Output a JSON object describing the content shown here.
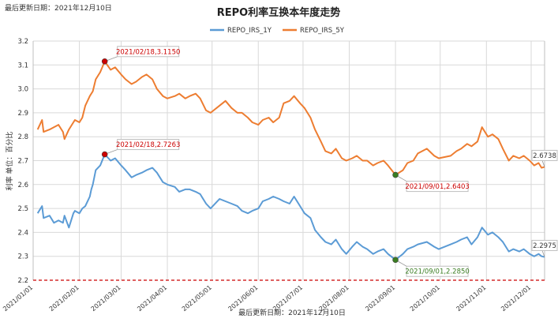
{
  "top_note": "最后更新日期：2021年12月10日",
  "footer_note": "最后更新日期：2021年12月10日",
  "chart_data": {
    "type": "line",
    "title": "REPO利率互换本年度走势",
    "ylabel": "利率 单位：百分比",
    "xlabel": "",
    "ylim": [
      2.2,
      3.2
    ],
    "yticks": [
      "2.2",
      "2.3",
      "2.4",
      "2.5",
      "2.6",
      "2.7",
      "2.8",
      "2.9",
      "3.0",
      "3.1",
      "3.2"
    ],
    "xlim": [
      "2021-01-01",
      "2021-12-10"
    ],
    "xticks": [
      "2021/01/01",
      "2021/02/01",
      "2021/03/01",
      "2021/04/01",
      "2021/05/01",
      "2021/06/01",
      "2021/07/01",
      "2021/08/01",
      "2021/09/01",
      "2021/10/01",
      "2021/11/01",
      "2021/12/01"
    ],
    "grid": true,
    "legend": "top-center",
    "reference_line": {
      "y": 2.2,
      "color": "#cc0000",
      "style": "dashed"
    },
    "series": [
      {
        "name": "REPO_IRS_1Y",
        "color": "#5b9bd5",
        "points": [
          [
            "2021-01-04",
            2.48
          ],
          [
            "2021-01-07",
            2.51
          ],
          [
            "2021-01-08",
            2.46
          ],
          [
            "2021-01-12",
            2.47
          ],
          [
            "2021-01-15",
            2.44
          ],
          [
            "2021-01-18",
            2.45
          ],
          [
            "2021-01-21",
            2.44
          ],
          [
            "2021-01-22",
            2.47
          ],
          [
            "2021-01-25",
            2.42
          ],
          [
            "2021-01-28",
            2.48
          ],
          [
            "2021-01-29",
            2.49
          ],
          [
            "2021-02-01",
            2.48
          ],
          [
            "2021-02-03",
            2.5
          ],
          [
            "2021-02-05",
            2.51
          ],
          [
            "2021-02-08",
            2.55
          ],
          [
            "2021-02-09",
            2.58
          ],
          [
            "2021-02-10",
            2.6
          ],
          [
            "2021-02-12",
            2.66
          ],
          [
            "2021-02-15",
            2.68
          ],
          [
            "2021-02-18",
            2.7263
          ],
          [
            "2021-02-22",
            2.7
          ],
          [
            "2021-02-25",
            2.71
          ],
          [
            "2021-03-01",
            2.68
          ],
          [
            "2021-03-04",
            2.66
          ],
          [
            "2021-03-08",
            2.63
          ],
          [
            "2021-03-11",
            2.64
          ],
          [
            "2021-03-15",
            2.65
          ],
          [
            "2021-03-18",
            2.66
          ],
          [
            "2021-03-22",
            2.67
          ],
          [
            "2021-03-25",
            2.65
          ],
          [
            "2021-03-29",
            2.61
          ],
          [
            "2021-04-01",
            2.6
          ],
          [
            "2021-04-06",
            2.59
          ],
          [
            "2021-04-09",
            2.57
          ],
          [
            "2021-04-13",
            2.58
          ],
          [
            "2021-04-16",
            2.58
          ],
          [
            "2021-04-20",
            2.57
          ],
          [
            "2021-04-23",
            2.56
          ],
          [
            "2021-04-27",
            2.52
          ],
          [
            "2021-04-30",
            2.5
          ],
          [
            "2021-05-06",
            2.54
          ],
          [
            "2021-05-10",
            2.53
          ],
          [
            "2021-05-14",
            2.52
          ],
          [
            "2021-05-18",
            2.51
          ],
          [
            "2021-05-21",
            2.49
          ],
          [
            "2021-05-25",
            2.48
          ],
          [
            "2021-05-28",
            2.49
          ],
          [
            "2021-06-01",
            2.5
          ],
          [
            "2021-06-04",
            2.53
          ],
          [
            "2021-06-08",
            2.54
          ],
          [
            "2021-06-11",
            2.55
          ],
          [
            "2021-06-15",
            2.54
          ],
          [
            "2021-06-18",
            2.53
          ],
          [
            "2021-06-22",
            2.52
          ],
          [
            "2021-06-25",
            2.55
          ],
          [
            "2021-06-29",
            2.51
          ],
          [
            "2021-07-02",
            2.48
          ],
          [
            "2021-07-06",
            2.46
          ],
          [
            "2021-07-09",
            2.41
          ],
          [
            "2021-07-13",
            2.38
          ],
          [
            "2021-07-16",
            2.36
          ],
          [
            "2021-07-20",
            2.35
          ],
          [
            "2021-07-23",
            2.37
          ],
          [
            "2021-07-27",
            2.33
          ],
          [
            "2021-07-30",
            2.31
          ],
          [
            "2021-08-03",
            2.34
          ],
          [
            "2021-08-06",
            2.36
          ],
          [
            "2021-08-10",
            2.34
          ],
          [
            "2021-08-13",
            2.33
          ],
          [
            "2021-08-17",
            2.31
          ],
          [
            "2021-08-20",
            2.32
          ],
          [
            "2021-08-24",
            2.33
          ],
          [
            "2021-08-27",
            2.31
          ],
          [
            "2021-09-01",
            2.285
          ],
          [
            "2021-09-06",
            2.31
          ],
          [
            "2021-09-09",
            2.33
          ],
          [
            "2021-09-13",
            2.34
          ],
          [
            "2021-09-16",
            2.35
          ],
          [
            "2021-09-22",
            2.36
          ],
          [
            "2021-09-27",
            2.34
          ],
          [
            "2021-09-30",
            2.33
          ],
          [
            "2021-10-08",
            2.35
          ],
          [
            "2021-10-12",
            2.36
          ],
          [
            "2021-10-15",
            2.37
          ],
          [
            "2021-10-19",
            2.38
          ],
          [
            "2021-10-22",
            2.35
          ],
          [
            "2021-10-26",
            2.38
          ],
          [
            "2021-10-29",
            2.42
          ],
          [
            "2021-11-02",
            2.39
          ],
          [
            "2021-11-05",
            2.4
          ],
          [
            "2021-11-09",
            2.38
          ],
          [
            "2021-11-12",
            2.36
          ],
          [
            "2021-11-16",
            2.32
          ],
          [
            "2021-11-19",
            2.33
          ],
          [
            "2021-11-23",
            2.32
          ],
          [
            "2021-11-26",
            2.33
          ],
          [
            "2021-11-30",
            2.31
          ],
          [
            "2021-12-03",
            2.3
          ],
          [
            "2021-12-06",
            2.31
          ],
          [
            "2021-12-08",
            2.3
          ],
          [
            "2021-12-10",
            2.2975
          ]
        ],
        "callouts": [
          {
            "date": "2021-02-18",
            "value": 2.7263,
            "text": "2021/02/18,2.7263",
            "marker": "#cc0000",
            "text_color": "#cc0000"
          },
          {
            "date": "2021-09-01",
            "value": 2.285,
            "text": "2021/09/01,2.2850",
            "marker": "#3a7d22",
            "text_color": "#3a7d22"
          }
        ],
        "last_label": "2.2975"
      },
      {
        "name": "REPO_IRS_5Y",
        "color": "#ed7d31",
        "points": [
          [
            "2021-01-04",
            2.83
          ],
          [
            "2021-01-07",
            2.87
          ],
          [
            "2021-01-08",
            2.82
          ],
          [
            "2021-01-12",
            2.83
          ],
          [
            "2021-01-15",
            2.84
          ],
          [
            "2021-01-18",
            2.85
          ],
          [
            "2021-01-21",
            2.82
          ],
          [
            "2021-01-22",
            2.79
          ],
          [
            "2021-01-25",
            2.83
          ],
          [
            "2021-01-28",
            2.86
          ],
          [
            "2021-01-29",
            2.87
          ],
          [
            "2021-02-01",
            2.86
          ],
          [
            "2021-02-03",
            2.88
          ],
          [
            "2021-02-05",
            2.93
          ],
          [
            "2021-02-08",
            2.97
          ],
          [
            "2021-02-10",
            2.99
          ],
          [
            "2021-02-12",
            3.04
          ],
          [
            "2021-02-15",
            3.07
          ],
          [
            "2021-02-18",
            3.115
          ],
          [
            "2021-02-22",
            3.08
          ],
          [
            "2021-02-25",
            3.09
          ],
          [
            "2021-03-01",
            3.06
          ],
          [
            "2021-03-04",
            3.04
          ],
          [
            "2021-03-08",
            3.02
          ],
          [
            "2021-03-11",
            3.03
          ],
          [
            "2021-03-15",
            3.05
          ],
          [
            "2021-03-18",
            3.06
          ],
          [
            "2021-03-22",
            3.04
          ],
          [
            "2021-03-25",
            3.0
          ],
          [
            "2021-03-29",
            2.97
          ],
          [
            "2021-04-01",
            2.96
          ],
          [
            "2021-04-06",
            2.97
          ],
          [
            "2021-04-09",
            2.98
          ],
          [
            "2021-04-13",
            2.96
          ],
          [
            "2021-04-16",
            2.97
          ],
          [
            "2021-04-20",
            2.98
          ],
          [
            "2021-04-23",
            2.96
          ],
          [
            "2021-04-27",
            2.91
          ],
          [
            "2021-04-30",
            2.9
          ],
          [
            "2021-05-06",
            2.93
          ],
          [
            "2021-05-10",
            2.95
          ],
          [
            "2021-05-14",
            2.92
          ],
          [
            "2021-05-18",
            2.9
          ],
          [
            "2021-05-21",
            2.9
          ],
          [
            "2021-05-25",
            2.88
          ],
          [
            "2021-05-28",
            2.86
          ],
          [
            "2021-06-01",
            2.85
          ],
          [
            "2021-06-04",
            2.87
          ],
          [
            "2021-06-08",
            2.88
          ],
          [
            "2021-06-11",
            2.86
          ],
          [
            "2021-06-15",
            2.88
          ],
          [
            "2021-06-18",
            2.94
          ],
          [
            "2021-06-22",
            2.95
          ],
          [
            "2021-06-25",
            2.97
          ],
          [
            "2021-06-29",
            2.94
          ],
          [
            "2021-07-02",
            2.92
          ],
          [
            "2021-07-06",
            2.88
          ],
          [
            "2021-07-09",
            2.83
          ],
          [
            "2021-07-13",
            2.78
          ],
          [
            "2021-07-16",
            2.74
          ],
          [
            "2021-07-20",
            2.73
          ],
          [
            "2021-07-23",
            2.75
          ],
          [
            "2021-07-27",
            2.71
          ],
          [
            "2021-07-30",
            2.7
          ],
          [
            "2021-08-03",
            2.71
          ],
          [
            "2021-08-06",
            2.72
          ],
          [
            "2021-08-10",
            2.7
          ],
          [
            "2021-08-13",
            2.7
          ],
          [
            "2021-08-17",
            2.68
          ],
          [
            "2021-08-20",
            2.69
          ],
          [
            "2021-08-24",
            2.7
          ],
          [
            "2021-08-27",
            2.68
          ],
          [
            "2021-09-01",
            2.6403
          ],
          [
            "2021-09-06",
            2.66
          ],
          [
            "2021-09-09",
            2.69
          ],
          [
            "2021-09-13",
            2.7
          ],
          [
            "2021-09-16",
            2.73
          ],
          [
            "2021-09-22",
            2.75
          ],
          [
            "2021-09-27",
            2.72
          ],
          [
            "2021-09-30",
            2.71
          ],
          [
            "2021-10-08",
            2.72
          ],
          [
            "2021-10-12",
            2.74
          ],
          [
            "2021-10-15",
            2.75
          ],
          [
            "2021-10-19",
            2.77
          ],
          [
            "2021-10-22",
            2.76
          ],
          [
            "2021-10-26",
            2.78
          ],
          [
            "2021-10-29",
            2.84
          ],
          [
            "2021-11-02",
            2.8
          ],
          [
            "2021-11-05",
            2.81
          ],
          [
            "2021-11-09",
            2.79
          ],
          [
            "2021-11-12",
            2.75
          ],
          [
            "2021-11-16",
            2.7
          ],
          [
            "2021-11-19",
            2.72
          ],
          [
            "2021-11-23",
            2.71
          ],
          [
            "2021-11-26",
            2.72
          ],
          [
            "2021-11-30",
            2.7
          ],
          [
            "2021-12-03",
            2.68
          ],
          [
            "2021-12-06",
            2.69
          ],
          [
            "2021-12-08",
            2.67
          ],
          [
            "2021-12-10",
            2.6738
          ]
        ],
        "callouts": [
          {
            "date": "2021-02-18",
            "value": 3.115,
            "text": "2021/02/18,3.1150",
            "marker": "#cc0000",
            "text_color": "#cc0000"
          },
          {
            "date": "2021-09-01",
            "value": 2.6403,
            "text": "2021/09/01,2.6403",
            "marker": "#3a7d22",
            "text_color": "#cc0000"
          }
        ],
        "last_label": "2.6738"
      }
    ]
  }
}
